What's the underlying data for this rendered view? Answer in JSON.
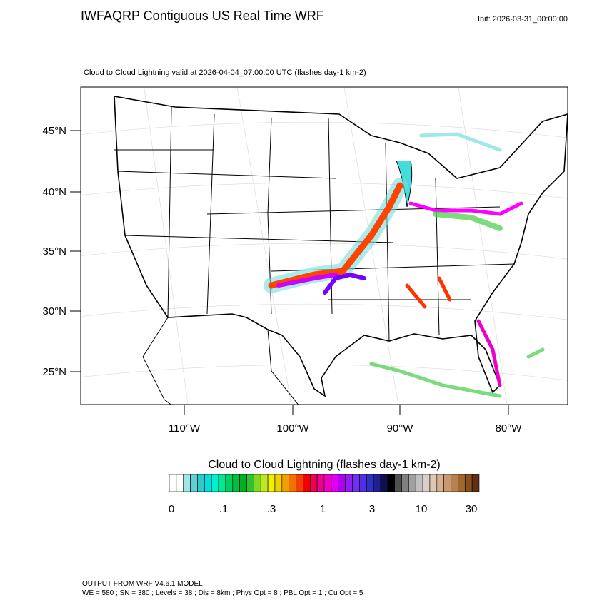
{
  "header": {
    "title": "IWFAQRP Contiguous US Real Time WRF",
    "init": "Init: 2026-03-31_00:00:00"
  },
  "plot": {
    "subtitle": "Cloud to Cloud Lightning valid at 2026-04-04_07:00:00 UTC   (flashes day-1 km-2)",
    "lat_labels": [
      "45°N",
      "40°N",
      "35°N",
      "30°N",
      "25°N"
    ],
    "lon_labels": [
      "110°W",
      "100°W",
      "90°W",
      "80°W"
    ]
  },
  "colorbar": {
    "title": "Cloud to Cloud Lightning  (flashes day-1 km-2)",
    "labels": [
      "0",
      ".1",
      ".3",
      "1",
      "3",
      "10",
      "30"
    ],
    "colors": [
      "#ffffff",
      "#ffffff",
      "#a0e6e6",
      "#60d0d0",
      "#30c8c8",
      "#00e0e0",
      "#00f0d0",
      "#00e890",
      "#00d060",
      "#00c040",
      "#00b020",
      "#30c030",
      "#80d820",
      "#c0e820",
      "#f0f000",
      "#f0d000",
      "#f0a000",
      "#f07000",
      "#f04000",
      "#f00000",
      "#f00050",
      "#f00090",
      "#f000c0",
      "#e000f0",
      "#b000f0",
      "#9020f0",
      "#7030f0",
      "#5030e0",
      "#3030c0",
      "#202090",
      "#101050",
      "#000000",
      "#505050",
      "#808080",
      "#a0a0a0",
      "#c0c0c0",
      "#d8d0c8",
      "#e0c8b0",
      "#d8b090",
      "#c89870",
      "#b88050",
      "#a06830",
      "#885020",
      "#603010"
    ]
  },
  "footer": {
    "line1": "OUTPUT FROM WRF V4.6.1 MODEL",
    "line2": "WE = 580 ; SN = 380 ; Levels = 38 ; Dis = 8km ; Phys Opt = 8 ; PBL Opt = 1 ; Cu Opt = 5"
  }
}
